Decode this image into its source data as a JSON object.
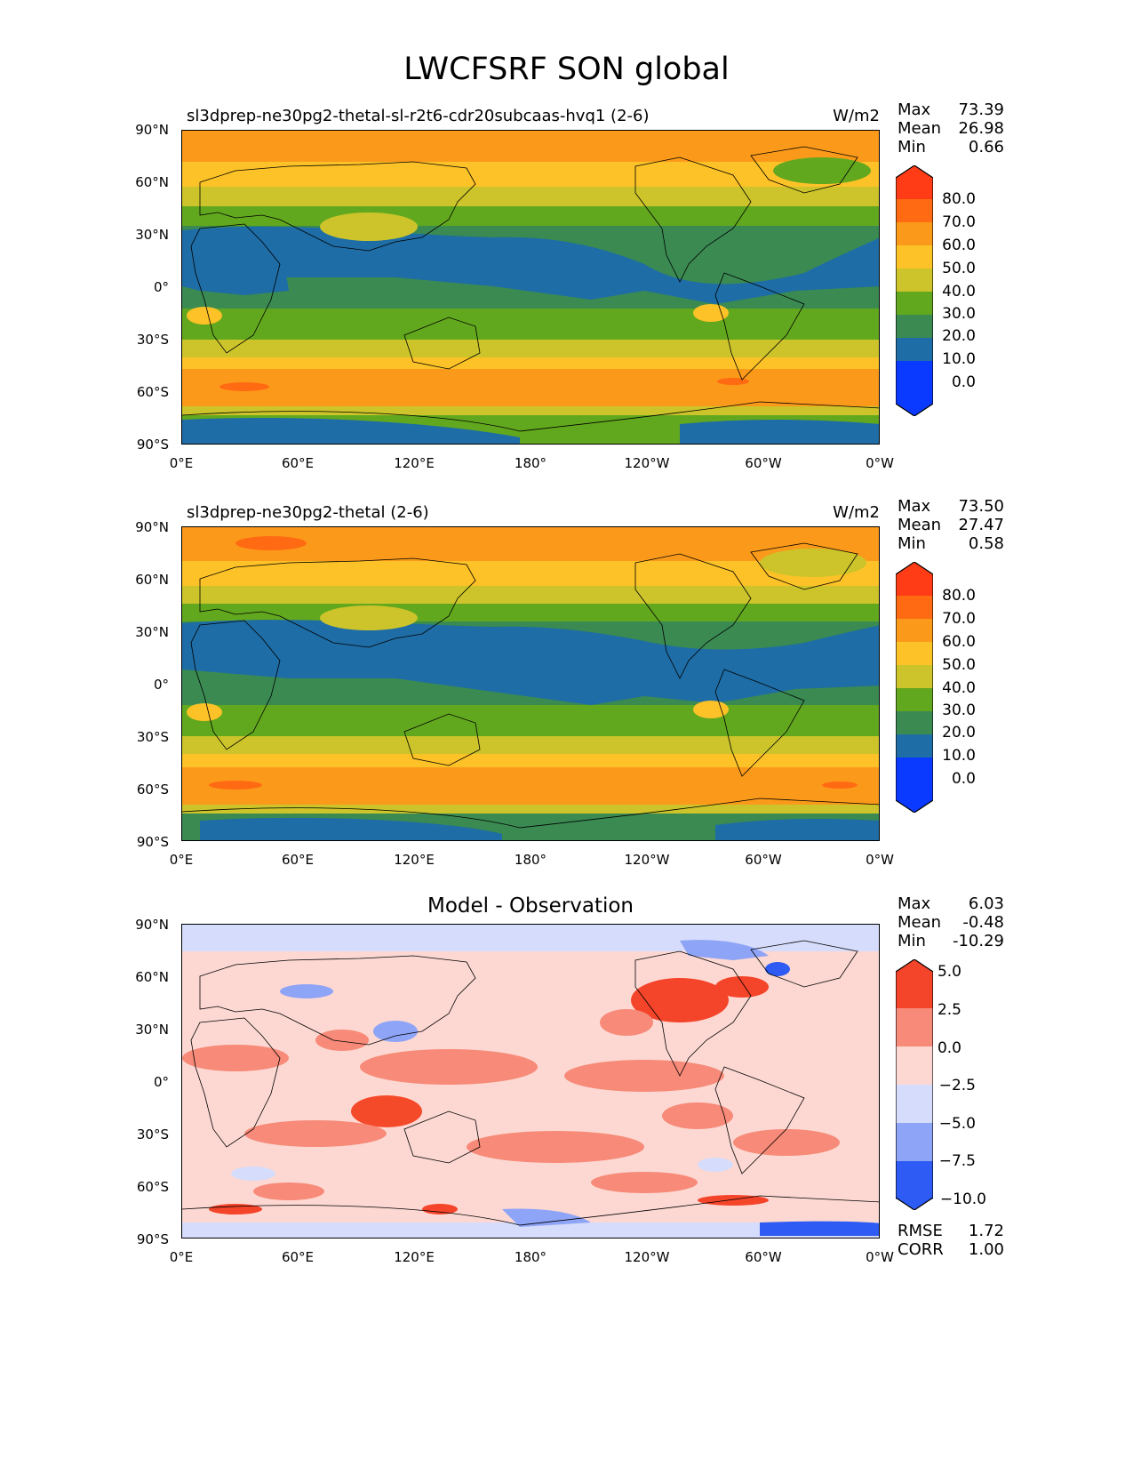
{
  "title": "LWCFSRF SON global",
  "x_ticks": [
    "0°E",
    "60°E",
    "120°E",
    "180°",
    "120°W",
    "60°W",
    "0°W"
  ],
  "y_ticks": [
    "90°N",
    "60°N",
    "30°N",
    "0°",
    "30°S",
    "60°S",
    "90°S"
  ],
  "panels": [
    {
      "id": "test",
      "title": "sl3dprep-ne30pg2-thetal-sl-r2t6-cdr20subcaas-hvq1 (2-6)",
      "units": "W/m2",
      "stats": {
        "max_label": "Max",
        "max": "73.39",
        "mean_label": "Mean",
        "mean": "26.98",
        "min_label": "Min",
        "min": "0.66"
      },
      "colorbar": {
        "labels": [
          "80.0",
          "70.0",
          "60.0",
          "50.0",
          "40.0",
          "30.0",
          "20.0",
          "10.0",
          "0.0"
        ],
        "colors": [
          "#ff3c16",
          "#ff6a12",
          "#fb9a1a",
          "#fdc227",
          "#ccc42a",
          "#62a81e",
          "#3a8a52",
          "#1e6da6",
          "#0a3aff"
        ]
      }
    },
    {
      "id": "reference",
      "title": "sl3dprep-ne30pg2-thetal (2-6)",
      "units": "W/m2",
      "stats": {
        "max_label": "Max",
        "max": "73.50",
        "mean_label": "Mean",
        "mean": "27.47",
        "min_label": "Min",
        "min": "0.58"
      },
      "colorbar": {
        "labels": [
          "80.0",
          "70.0",
          "60.0",
          "50.0",
          "40.0",
          "30.0",
          "20.0",
          "10.0",
          "0.0"
        ],
        "colors": [
          "#ff3c16",
          "#ff6a12",
          "#fb9a1a",
          "#fdc227",
          "#ccc42a",
          "#62a81e",
          "#3a8a52",
          "#1e6da6",
          "#0a3aff"
        ]
      }
    },
    {
      "id": "diff",
      "title": "Model - Observation",
      "units": "",
      "stats": {
        "max_label": "Max",
        "max": "6.03",
        "mean_label": "Mean",
        "mean": "-0.48",
        "min_label": "Min",
        "min": "-10.29"
      },
      "colorbar": {
        "labels": [
          "5.0",
          "2.5",
          "0.0",
          "−2.5",
          "−5.0",
          "−7.5",
          "−10.0"
        ],
        "colors": [
          "#f4442a",
          "#f78a78",
          "#fdd8d2",
          "#d6dcfb",
          "#8ea4f7",
          "#2d5bf3"
        ]
      },
      "extra_stats": {
        "rmse_label": "RMSE",
        "rmse": "1.72",
        "corr_label": "CORR",
        "corr": "1.00"
      }
    }
  ]
}
